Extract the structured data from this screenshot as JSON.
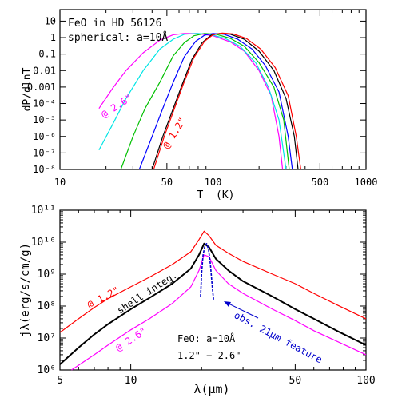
{
  "chart_data": [
    {
      "type": "line",
      "xlabel": "T  (K)",
      "ylabel": "dP/dlnT",
      "xscale": "log",
      "yscale": "log",
      "xlim": [
        10,
        1000
      ],
      "ylim": [
        1e-08,
        50
      ],
      "x_tick_labels": [
        "10",
        "50",
        "100",
        "500",
        "1000"
      ],
      "x_tick_values": [
        10,
        50,
        100,
        500,
        1000
      ],
      "y_tick_labels": [
        "10",
        "1",
        "0.1",
        "0.01",
        "0.001",
        "10⁻⁴",
        "10⁻⁵",
        "10⁻⁶",
        "10⁻⁷",
        "10⁻⁸"
      ],
      "y_tick_values": [
        10,
        1,
        0.1,
        0.01,
        0.001,
        0.0001,
        1e-05,
        1e-06,
        1e-07,
        1e-08
      ],
      "legend_lines": [
        "FeO in HD 56126",
        "spherical: a=10Å"
      ],
      "annotations": [
        "@ 2.6\"",
        "@ 1.2\""
      ],
      "series": [
        {
          "color": "#ff00ff",
          "points": [
            [
              18,
              5e-05
            ],
            [
              22,
              0.0008
            ],
            [
              27,
              0.01
            ],
            [
              35,
              0.12
            ],
            [
              45,
              0.7
            ],
            [
              55,
              1.5
            ],
            [
              65,
              1.8
            ],
            [
              80,
              1.75
            ],
            [
              100,
              1.3
            ],
            [
              130,
              0.55
            ],
            [
              160,
              0.15
            ],
            [
              200,
              0.01
            ],
            [
              240,
              0.0003
            ],
            [
              270,
              1e-06
            ],
            [
              285,
              1e-08
            ]
          ]
        },
        {
          "color": "#00e5e5",
          "points": [
            [
              18,
              1.5e-07
            ],
            [
              22,
              5e-06
            ],
            [
              27,
              0.0002
            ],
            [
              35,
              0.01
            ],
            [
              45,
              0.2
            ],
            [
              55,
              0.8
            ],
            [
              65,
              1.6
            ],
            [
              78,
              1.8
            ],
            [
              95,
              1.6
            ],
            [
              120,
              0.9
            ],
            [
              150,
              0.3
            ],
            [
              190,
              0.03
            ],
            [
              230,
              0.001
            ],
            [
              270,
              1e-05
            ],
            [
              300,
              1e-08
            ]
          ]
        },
        {
          "color": "#00c000",
          "points": [
            [
              25,
              1e-08
            ],
            [
              30,
              1e-06
            ],
            [
              36,
              5e-05
            ],
            [
              45,
              0.002
            ],
            [
              55,
              0.08
            ],
            [
              65,
              0.5
            ],
            [
              75,
              1.3
            ],
            [
              88,
              1.8
            ],
            [
              105,
              1.6
            ],
            [
              130,
              0.9
            ],
            [
              160,
              0.3
            ],
            [
              200,
              0.03
            ],
            [
              250,
              0.001
            ],
            [
              290,
              1e-05
            ],
            [
              315,
              1e-08
            ]
          ]
        },
        {
          "color": "#0000ff",
          "points": [
            [
              33,
              1e-08
            ],
            [
              40,
              1e-06
            ],
            [
              47,
              5e-05
            ],
            [
              55,
              0.002
            ],
            [
              65,
              0.07
            ],
            [
              77,
              0.6
            ],
            [
              88,
              1.4
            ],
            [
              100,
              1.8
            ],
            [
              118,
              1.6
            ],
            [
              145,
              0.8
            ],
            [
              180,
              0.2
            ],
            [
              220,
              0.02
            ],
            [
              270,
              0.0005
            ],
            [
              310,
              1e-06
            ],
            [
              330,
              1e-08
            ]
          ]
        },
        {
          "color": "#000000",
          "points": [
            [
              40,
              1e-08
            ],
            [
              47,
              1e-06
            ],
            [
              55,
              5e-05
            ],
            [
              63,
              0.0015
            ],
            [
              73,
              0.05
            ],
            [
              85,
              0.5
            ],
            [
              97,
              1.4
            ],
            [
              110,
              1.8
            ],
            [
              130,
              1.6
            ],
            [
              160,
              0.8
            ],
            [
              200,
              0.15
            ],
            [
              250,
              0.01
            ],
            [
              300,
              0.0002
            ],
            [
              340,
              1e-06
            ],
            [
              360,
              1e-08
            ]
          ]
        },
        {
          "color": "#ff0000",
          "points": [
            [
              41,
              1e-08
            ],
            [
              48,
              1e-06
            ],
            [
              56,
              5e-05
            ],
            [
              64,
              0.0015
            ],
            [
              75,
              0.06
            ],
            [
              88,
              0.6
            ],
            [
              100,
              1.5
            ],
            [
              115,
              1.9
            ],
            [
              135,
              1.7
            ],
            [
              165,
              0.9
            ],
            [
              205,
              0.2
            ],
            [
              255,
              0.015
            ],
            [
              310,
              0.0003
            ],
            [
              350,
              1e-06
            ],
            [
              375,
              1e-08
            ]
          ]
        }
      ]
    },
    {
      "type": "line",
      "xlabel": "λ(μm)",
      "ylabel": "jλ(erg/s/cm/g)",
      "xscale": "log",
      "yscale": "log",
      "xlim": [
        5,
        100
      ],
      "ylim": [
        1000000.0,
        100000000000.0
      ],
      "x_tick_labels": [
        "5",
        "10",
        "50",
        "100"
      ],
      "x_tick_values": [
        5,
        10,
        50,
        100
      ],
      "y_tick_labels": [
        "10⁶",
        "10⁷",
        "10⁸",
        "10⁹",
        "10¹⁰",
        "10¹¹"
      ],
      "y_tick_values": [
        1000000.0,
        10000000.0,
        100000000.0,
        1000000000.0,
        10000000000.0,
        100000000000.0
      ],
      "labels": [
        "@ 1.2\"",
        "shell integ.",
        "@ 2.6\"",
        "obs. 21μm feature",
        "FeO: a=10Å",
        "1.2\" − 2.6\""
      ],
      "series": [
        {
          "color": "#ff0000",
          "points": [
            [
              5,
              15000000.0
            ],
            [
              6,
              40000000.0
            ],
            [
              7,
              90000000.0
            ],
            [
              8,
              170000000.0
            ],
            [
              10,
              400000000.0
            ],
            [
              12,
              800000000.0
            ],
            [
              15,
              2000000000.0
            ],
            [
              18,
              5000000000.0
            ],
            [
              19.5,
              12000000000.0
            ],
            [
              20.5,
              22000000000.0
            ],
            [
              21.5,
              16000000000.0
            ],
            [
              23,
              8000000000.0
            ],
            [
              26,
              4500000000.0
            ],
            [
              30,
              2500000000.0
            ],
            [
              40,
              1000000000.0
            ],
            [
              50,
              500000000.0
            ],
            [
              60,
              250000000.0
            ],
            [
              75,
              110000000.0
            ],
            [
              100,
              40000000.0
            ]
          ]
        },
        {
          "color": "#000000",
          "points": [
            [
              5,
              1500000.0
            ],
            [
              6,
              5000000.0
            ],
            [
              7,
              13000000.0
            ],
            [
              8,
              27000000.0
            ],
            [
              10,
              80000000.0
            ],
            [
              12,
              180000000.0
            ],
            [
              15,
              500000000.0
            ],
            [
              18,
              1500000000.0
            ],
            [
              19.5,
              4000000000.0
            ],
            [
              20.5,
              9000000000.0
            ],
            [
              21.5,
              7000000000.0
            ],
            [
              23,
              3000000000.0
            ],
            [
              26,
              1300000000.0
            ],
            [
              30,
              600000000.0
            ],
            [
              40,
              200000000.0
            ],
            [
              50,
              80000000.0
            ],
            [
              60,
              40000000.0
            ],
            [
              75,
              17000000.0
            ],
            [
              100,
              6000000.0
            ]
          ]
        },
        {
          "color": "#ff00ff",
          "points": [
            [
              5.6,
              1000000.0
            ],
            [
              7,
              3000000.0
            ],
            [
              8,
              6000000.0
            ],
            [
              10,
              18000000.0
            ],
            [
              12,
              40000000.0
            ],
            [
              15,
              120000000.0
            ],
            [
              18,
              400000000.0
            ],
            [
              19.5,
              1300000000.0
            ],
            [
              20.5,
              4000000000.0
            ],
            [
              21.5,
              3500000000.0
            ],
            [
              23,
              1300000000.0
            ],
            [
              26,
              500000000.0
            ],
            [
              30,
              250000000.0
            ],
            [
              40,
              80000000.0
            ],
            [
              50,
              35000000.0
            ],
            [
              60,
              17000000.0
            ],
            [
              75,
              8000000.0
            ],
            [
              100,
              3000000.0
            ]
          ]
        },
        {
          "color": "#0000cc",
          "dashed": true,
          "points": [
            [
              19.8,
              200000000.0
            ],
            [
              20,
              1000000000.0
            ],
            [
              20.3,
              4000000000.0
            ],
            [
              20.7,
              8000000000.0
            ],
            [
              21,
              9000000000.0
            ],
            [
              21.4,
              6000000000.0
            ],
            [
              21.8,
              2000000000.0
            ],
            [
              22.2,
              400000000.0
            ],
            [
              22.5,
              150000000.0
            ]
          ]
        }
      ]
    }
  ]
}
